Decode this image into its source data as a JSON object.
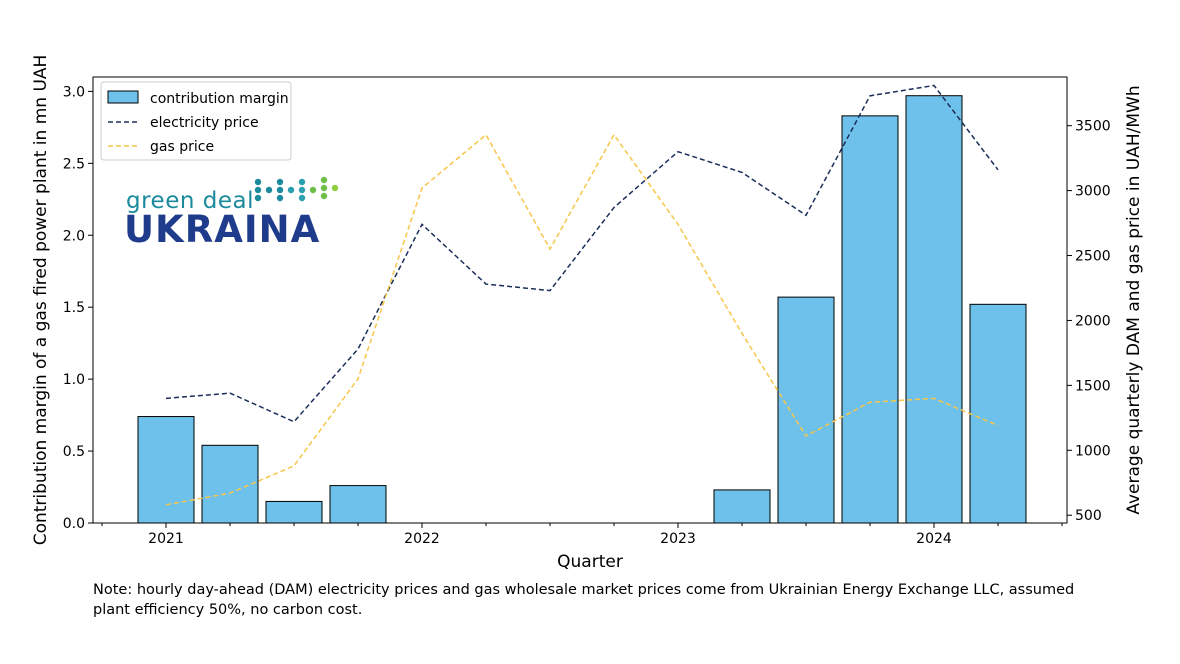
{
  "chart_data": {
    "type": "bar",
    "xlabel": "Quarter",
    "ylabel": "Contribution margin of a gas fired power plant in mn UAH",
    "y2label": "Average quarterly DAM and gas price in UAH/MWh",
    "x_ticks": [
      "2021",
      "2022",
      "2023",
      "2024"
    ],
    "y_ticks": [
      "0.0",
      "0.5",
      "1.0",
      "1.5",
      "2.0",
      "2.5",
      "3.0"
    ],
    "y2_ticks": [
      "500",
      "1000",
      "1500",
      "2000",
      "2500",
      "3000",
      "3500"
    ],
    "ylim": [
      0,
      3.1
    ],
    "y2lim": [
      440,
      3875
    ],
    "quarters": [
      "2021-Q1",
      "2021-Q2",
      "2021-Q3",
      "2021-Q4",
      "2022-Q1",
      "2022-Q2",
      "2022-Q3",
      "2022-Q4",
      "2023-Q1",
      "2023-Q2",
      "2023-Q3",
      "2023-Q4",
      "2024-Q1",
      "2024-Q2"
    ],
    "legend_position": "upper-left",
    "grid": false,
    "series": [
      {
        "name": "contribution margin",
        "kind": "bar",
        "color": "#6ec1ea",
        "values": [
          0.74,
          0.54,
          0.15,
          0.26,
          0,
          0,
          0,
          0,
          0,
          0.23,
          1.57,
          2.83,
          2.97,
          1.52
        ]
      },
      {
        "name": "electricity price",
        "kind": "line",
        "axis": "right",
        "color": "#1b2f5a",
        "values": [
          1400,
          1440,
          1220,
          1780,
          2740,
          2280,
          2230,
          2870,
          3300,
          3140,
          2810,
          3730,
          3810,
          3160
        ]
      },
      {
        "name": "gas price",
        "kind": "line",
        "axis": "right",
        "color": "#f7c64a",
        "values": [
          580,
          670,
          880,
          1550,
          3020,
          3430,
          2550,
          3430,
          2740,
          1900,
          1110,
          1370,
          1400,
          1190
        ]
      }
    ]
  },
  "logo": {
    "line1": "green deal",
    "line2": "UKRAINA",
    "dot_colors": [
      "#1a8a9c",
      "#2a9fb0",
      "#6dbf4a",
      "#8fcf3f"
    ]
  },
  "note": "Note: hourly day-ahead (DAM) electricity prices and gas wholesale market prices come from Ukrainian Energy Exchange LLC, assumed plant efficiency 50%, no carbon cost."
}
